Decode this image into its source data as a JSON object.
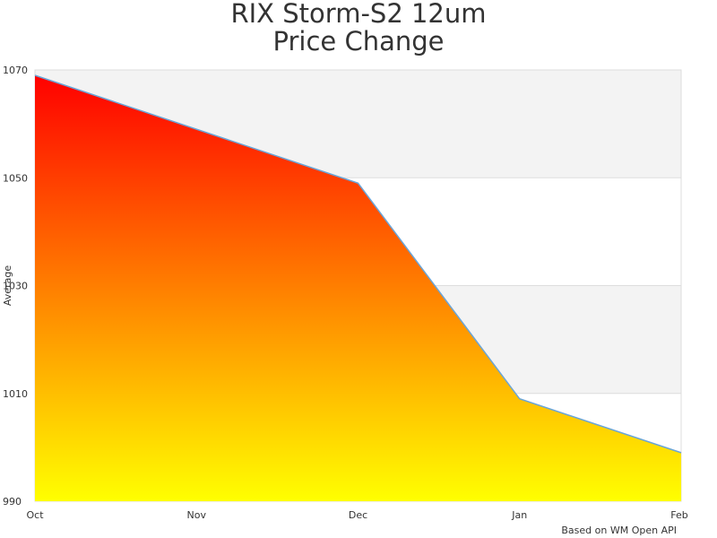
{
  "header": {
    "title_line1": "RIX Storm-S2 12um",
    "title_line2": "Price Change"
  },
  "footer": {
    "credit": "Based on WM Open API"
  },
  "colors": {
    "fill_top": "#ff0000",
    "fill_bottom": "#ffff00",
    "line": "#6aa5d8",
    "band": "#f3f3f3",
    "grid": "#dddddd"
  },
  "chart_data": {
    "type": "area",
    "title": "RIX Storm-S2 12um Price Change",
    "xlabel": "",
    "ylabel": "Average",
    "categories": [
      "Oct",
      "Nov",
      "Dec",
      "Jan",
      "Feb"
    ],
    "series": [
      {
        "values": [
          1069,
          1059,
          1049,
          1009,
          999
        ]
      }
    ],
    "points_x_index": [
      0,
      2,
      3,
      4
    ],
    "points_y": [
      1069,
      1049,
      1009,
      999
    ],
    "ylim": [
      990,
      1070
    ],
    "yticks": [
      990,
      1010,
      1030,
      1050,
      1070
    ],
    "grid": true,
    "alternating_bands": true,
    "legend": "none"
  }
}
